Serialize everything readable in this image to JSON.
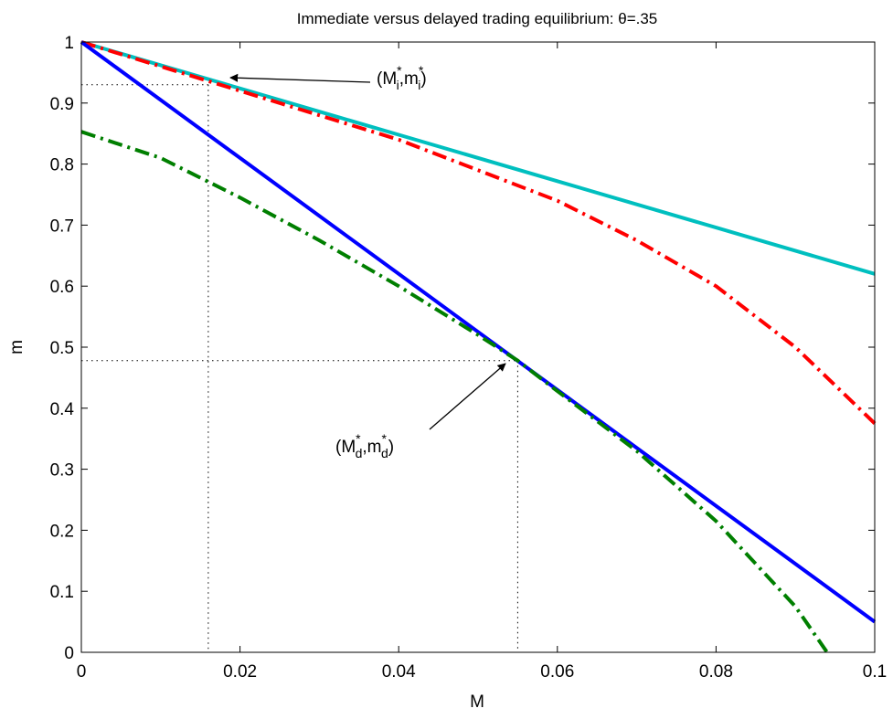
{
  "chart_data": {
    "type": "line",
    "title": "Immediate versus delayed trading equilibrium: θ=.35",
    "xlabel": "M",
    "ylabel": "m",
    "xlim": [
      0,
      0.1
    ],
    "ylim": [
      0,
      1
    ],
    "x_ticks": [
      "0",
      "0.02",
      "0.04",
      "0.06",
      "0.08",
      "0.1"
    ],
    "y_ticks": [
      "0",
      "0.1",
      "0.2",
      "0.3",
      "0.4",
      "0.5",
      "0.6",
      "0.7",
      "0.8",
      "0.9",
      "1"
    ],
    "grid": false,
    "legend": "none",
    "series": [
      {
        "color": "#00bfbf",
        "style": "solid",
        "x": [
          0,
          0.02,
          0.04,
          0.06,
          0.08,
          0.1
        ],
        "y": [
          1.0,
          0.924,
          0.848,
          0.772,
          0.696,
          0.62
        ]
      },
      {
        "color": "#ff0000",
        "style": "dash-dot",
        "x": [
          0,
          0.01,
          0.02,
          0.03,
          0.04,
          0.05,
          0.06,
          0.07,
          0.08,
          0.09,
          0.1
        ],
        "y": [
          1.0,
          0.96,
          0.92,
          0.88,
          0.84,
          0.79,
          0.74,
          0.675,
          0.6,
          0.5,
          0.375
        ]
      },
      {
        "color": "#0000ff",
        "style": "solid",
        "x": [
          0,
          0.02,
          0.04,
          0.06,
          0.08,
          0.1
        ],
        "y": [
          1.0,
          0.81,
          0.62,
          0.43,
          0.24,
          0.05
        ]
      },
      {
        "color": "#007f00",
        "style": "dash-dot",
        "x": [
          0,
          0.01,
          0.02,
          0.03,
          0.04,
          0.05,
          0.055,
          0.06,
          0.07,
          0.08,
          0.09,
          0.094
        ],
        "y": [
          0.853,
          0.81,
          0.745,
          0.675,
          0.6,
          0.52,
          0.478,
          0.428,
          0.33,
          0.215,
          0.075,
          0.0
        ]
      }
    ],
    "annotations": [
      {
        "id": "immediate",
        "base": "M",
        "sub": "i",
        "base2": "m",
        "sub2": "i",
        "sup": "*",
        "point": [
          0.016,
          0.93
        ]
      },
      {
        "id": "delayed",
        "base": "M",
        "sub": "d",
        "base2": "m",
        "sub2": "d",
        "sup": "*",
        "point": [
          0.055,
          0.478
        ]
      }
    ]
  }
}
